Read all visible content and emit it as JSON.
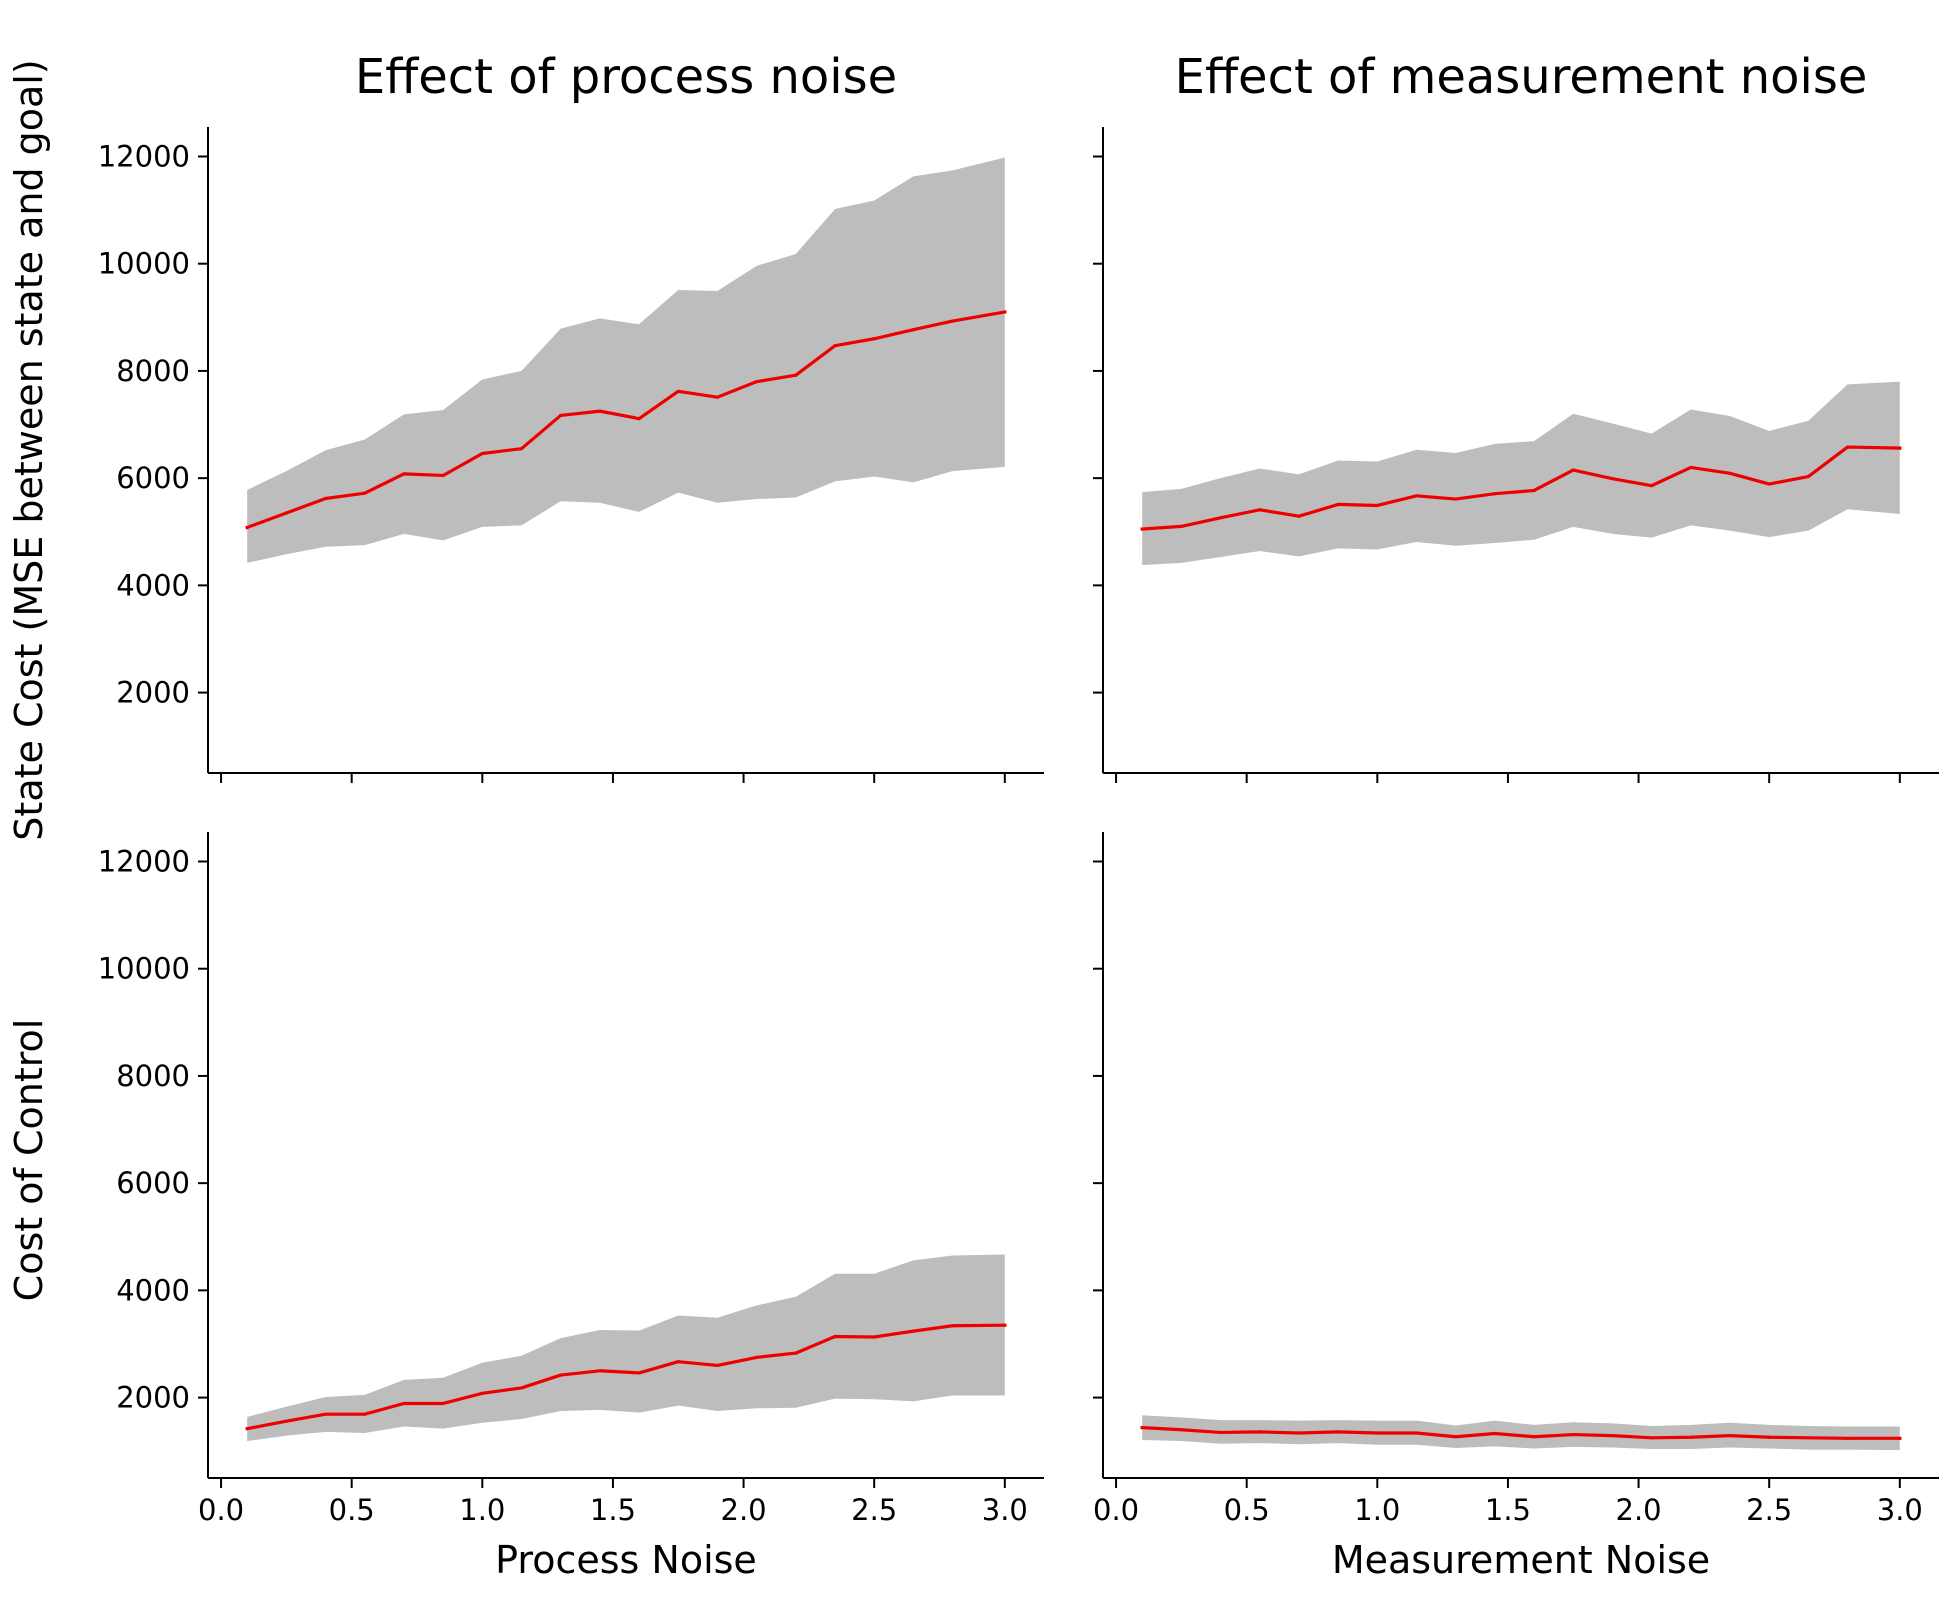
{
  "figure": {
    "ylabel_top": "State Cost (MSE between state and goal)",
    "ylabel_bottom": "Cost of Control"
  },
  "colors": {
    "line": "#ee0000",
    "band": "#bdbdbd",
    "axis": "#000000"
  },
  "chart_data": [
    {
      "id": "top-left",
      "type": "line",
      "title": "Effect of process noise",
      "xlabel": "",
      "ylabel": "State Cost (MSE between state and goal)",
      "xlim": [
        -0.05,
        3.15
      ],
      "ylim": [
        500,
        12550
      ],
      "xticks": [
        0.0,
        0.5,
        1.0,
        1.5,
        2.0,
        2.5,
        3.0
      ],
      "xtick_labels": [
        "",
        "",
        "",
        "",
        "",
        "",
        ""
      ],
      "yticks": [
        2000,
        4000,
        6000,
        8000,
        10000,
        12000
      ],
      "ytick_labels": [
        "2000",
        "4000",
        "6000",
        "8000",
        "10000",
        "12000"
      ],
      "grid": false,
      "x": [
        0.1,
        0.25,
        0.4,
        0.55,
        0.7,
        0.85,
        1.0,
        1.15,
        1.3,
        1.45,
        1.6,
        1.75,
        1.9,
        2.05,
        2.2,
        2.35,
        2.5,
        2.65,
        2.8,
        3.0
      ],
      "series": [
        {
          "mean": [
            5080,
            5350,
            5620,
            5720,
            6080,
            6050,
            6460,
            6550,
            7170,
            7250,
            7110,
            7620,
            7510,
            7800,
            7920,
            8470,
            8600,
            8770,
            8930,
            9100
          ],
          "lower": [
            4420,
            4580,
            4720,
            4750,
            4960,
            4840,
            5090,
            5120,
            5570,
            5540,
            5370,
            5730,
            5540,
            5610,
            5640,
            5940,
            6030,
            5920,
            6130,
            6210
          ],
          "upper": [
            5780,
            6130,
            6520,
            6720,
            7190,
            7270,
            7840,
            8000,
            8790,
            8980,
            8870,
            9510,
            9490,
            9960,
            10180,
            11020,
            11180,
            11630,
            11740,
            11980
          ]
        }
      ]
    },
    {
      "id": "top-right",
      "type": "line",
      "title": "Effect of measurement noise",
      "xlabel": "",
      "ylabel": "",
      "xlim": [
        -0.05,
        3.15
      ],
      "ylim": [
        500,
        12550
      ],
      "xticks": [
        0.0,
        0.5,
        1.0,
        1.5,
        2.0,
        2.5,
        3.0
      ],
      "xtick_labels": [
        "",
        "",
        "",
        "",
        "",
        "",
        ""
      ],
      "yticks": [
        2000,
        4000,
        6000,
        8000,
        10000,
        12000
      ],
      "ytick_labels": [
        "",
        "",
        "",
        "",
        "",
        ""
      ],
      "grid": false,
      "x": [
        0.1,
        0.25,
        0.4,
        0.55,
        0.7,
        0.85,
        1.0,
        1.15,
        1.3,
        1.45,
        1.6,
        1.75,
        1.9,
        2.05,
        2.2,
        2.35,
        2.5,
        2.65,
        2.8,
        3.0
      ],
      "series": [
        {
          "mean": [
            5050,
            5100,
            5260,
            5410,
            5290,
            5510,
            5490,
            5670,
            5610,
            5710,
            5770,
            6150,
            5990,
            5860,
            6200,
            6090,
            5890,
            6030,
            6580,
            6560
          ],
          "lower": [
            4380,
            4420,
            4530,
            4640,
            4540,
            4690,
            4670,
            4810,
            4740,
            4790,
            4850,
            5090,
            4960,
            4890,
            5120,
            5020,
            4900,
            5020,
            5420,
            5330
          ],
          "upper": [
            5740,
            5800,
            6000,
            6180,
            6070,
            6330,
            6310,
            6530,
            6470,
            6640,
            6690,
            7200,
            7020,
            6830,
            7280,
            7160,
            6880,
            7070,
            7750,
            7800
          ]
        }
      ]
    },
    {
      "id": "bottom-left",
      "type": "line",
      "title": "",
      "xlabel": "Process Noise",
      "ylabel": "Cost of Control",
      "xlim": [
        -0.05,
        3.15
      ],
      "ylim": [
        500,
        12550
      ],
      "xticks": [
        0.0,
        0.5,
        1.0,
        1.5,
        2.0,
        2.5,
        3.0
      ],
      "xtick_labels": [
        "0.0",
        "0.5",
        "1.0",
        "1.5",
        "2.0",
        "2.5",
        "3.0"
      ],
      "yticks": [
        2000,
        4000,
        6000,
        8000,
        10000,
        12000
      ],
      "ytick_labels": [
        "2000",
        "4000",
        "6000",
        "8000",
        "10000",
        "12000"
      ],
      "grid": false,
      "x": [
        0.1,
        0.25,
        0.4,
        0.55,
        0.7,
        0.85,
        1.0,
        1.15,
        1.3,
        1.45,
        1.6,
        1.75,
        1.9,
        2.05,
        2.2,
        2.35,
        2.5,
        2.65,
        2.8,
        3.0
      ],
      "series": [
        {
          "mean": [
            1420,
            1560,
            1690,
            1690,
            1890,
            1890,
            2080,
            2180,
            2420,
            2500,
            2460,
            2670,
            2600,
            2750,
            2830,
            3140,
            3130,
            3240,
            3340,
            3350
          ],
          "lower": [
            1190,
            1290,
            1360,
            1340,
            1460,
            1420,
            1530,
            1600,
            1750,
            1770,
            1720,
            1850,
            1750,
            1800,
            1810,
            1980,
            1970,
            1930,
            2040,
            2040
          ],
          "upper": [
            1640,
            1830,
            2010,
            2050,
            2330,
            2370,
            2650,
            2780,
            3110,
            3260,
            3250,
            3530,
            3490,
            3720,
            3880,
            4310,
            4310,
            4560,
            4650,
            4670
          ]
        }
      ]
    },
    {
      "id": "bottom-right",
      "type": "line",
      "title": "",
      "xlabel": "Measurement Noise",
      "ylabel": "",
      "xlim": [
        -0.05,
        3.15
      ],
      "ylim": [
        500,
        12550
      ],
      "xticks": [
        0.0,
        0.5,
        1.0,
        1.5,
        2.0,
        2.5,
        3.0
      ],
      "xtick_labels": [
        "0.0",
        "0.5",
        "1.0",
        "1.5",
        "2.0",
        "2.5",
        "3.0"
      ],
      "yticks": [
        2000,
        4000,
        6000,
        8000,
        10000,
        12000
      ],
      "ytick_labels": [
        "",
        "",
        "",
        "",
        "",
        ""
      ],
      "grid": false,
      "x": [
        0.1,
        0.25,
        0.4,
        0.55,
        0.7,
        0.85,
        1.0,
        1.15,
        1.3,
        1.45,
        1.6,
        1.75,
        1.9,
        2.05,
        2.2,
        2.35,
        2.5,
        2.65,
        2.8,
        3.0
      ],
      "series": [
        {
          "mean": [
            1440,
            1400,
            1350,
            1360,
            1340,
            1360,
            1340,
            1340,
            1270,
            1330,
            1270,
            1310,
            1290,
            1250,
            1260,
            1290,
            1260,
            1250,
            1240,
            1240
          ],
          "lower": [
            1210,
            1190,
            1140,
            1150,
            1130,
            1150,
            1120,
            1120,
            1060,
            1090,
            1050,
            1080,
            1070,
            1040,
            1040,
            1070,
            1050,
            1030,
            1030,
            1020
          ],
          "upper": [
            1670,
            1630,
            1580,
            1580,
            1570,
            1580,
            1570,
            1570,
            1480,
            1570,
            1490,
            1540,
            1520,
            1470,
            1490,
            1530,
            1490,
            1470,
            1460,
            1460
          ]
        }
      ]
    }
  ]
}
